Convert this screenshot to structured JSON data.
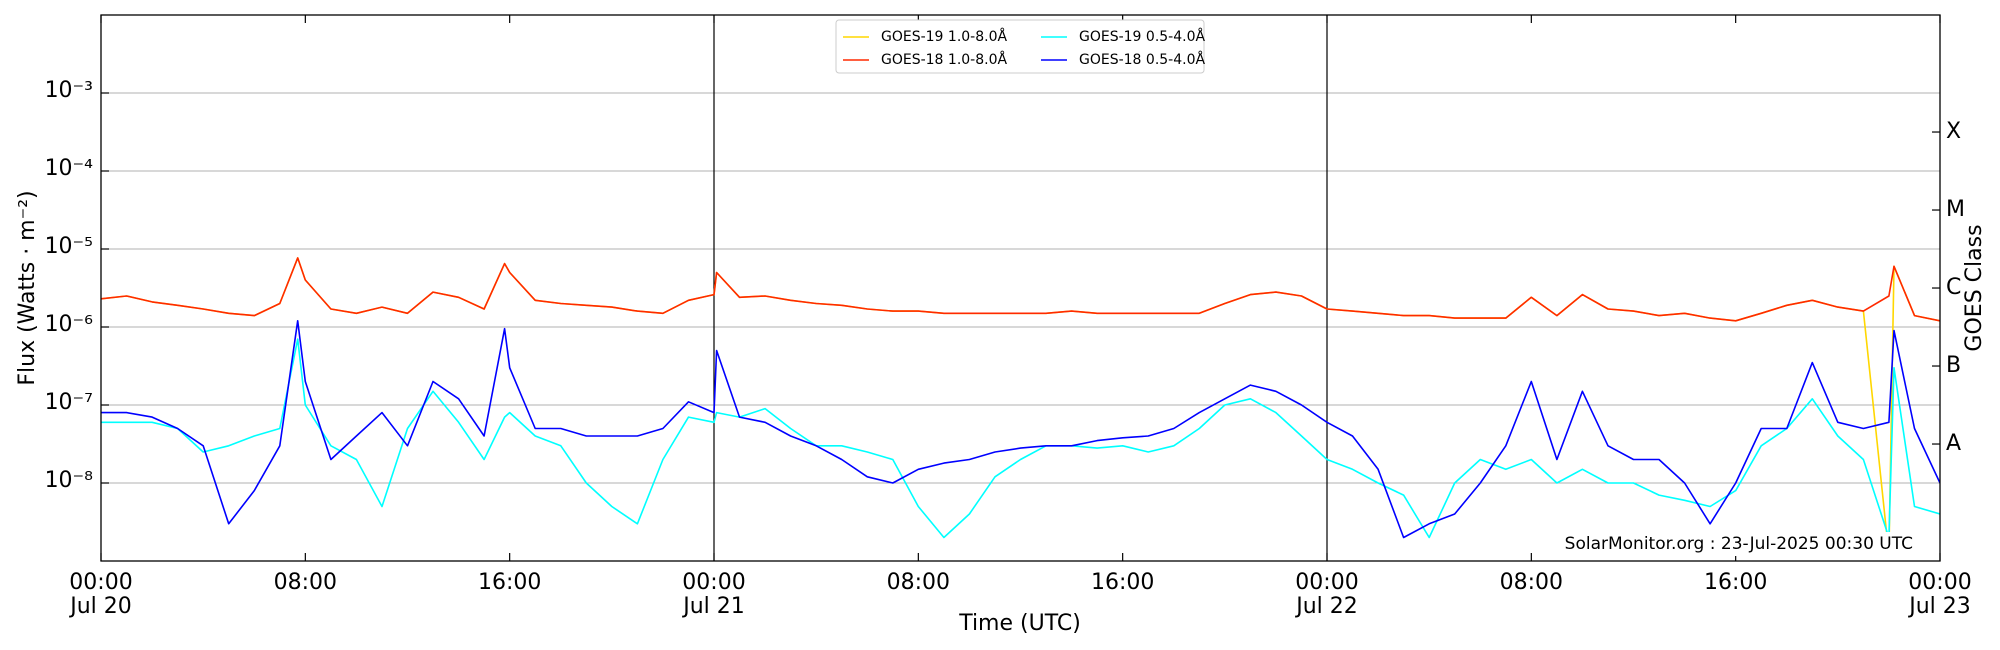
{
  "chart_data": {
    "type": "line",
    "ylabel": "Flux (Watts · m⁻²)",
    "xlabel": "Time (UTC)",
    "y2label": "GOES Class",
    "annotation": "SolarMonitor.org : 23-Jul-2025 00:30 UTC",
    "log_y": true,
    "grid": true,
    "legend": "upper center",
    "xlim": [
      0,
      72
    ],
    "ylim": [
      1e-09,
      0.01
    ],
    "y2lim": [
      1e-09,
      0.01
    ],
    "vlines": [
      24,
      48
    ],
    "xticks": [
      {
        "value": 0,
        "label": "00:00\nJul 20"
      },
      {
        "value": 8,
        "label": "08:00"
      },
      {
        "value": 16,
        "label": "16:00"
      },
      {
        "value": 24,
        "label": "00:00\nJul 21"
      },
      {
        "value": 32,
        "label": "08:00"
      },
      {
        "value": 40,
        "label": "16:00"
      },
      {
        "value": 48,
        "label": "00:00\nJul 22"
      },
      {
        "value": 56,
        "label": "08:00"
      },
      {
        "value": 64,
        "label": "16:00"
      },
      {
        "value": 72,
        "label": "00:00\nJul 23"
      }
    ],
    "yticks": [
      {
        "value": 1e-08,
        "label": "10⁻⁸"
      },
      {
        "value": 1e-07,
        "label": "10⁻⁷"
      },
      {
        "value": 1e-06,
        "label": "10⁻⁶"
      },
      {
        "value": 1e-05,
        "label": "10⁻⁵"
      },
      {
        "value": 0.0001,
        "label": "10⁻⁴"
      },
      {
        "value": 0.001,
        "label": "10⁻³"
      }
    ],
    "y2ticks": [
      {
        "value": 3.16e-08,
        "label": "A"
      },
      {
        "value": 3.16e-07,
        "label": "B"
      },
      {
        "value": 3.16e-06,
        "label": "C"
      },
      {
        "value": 3.16e-05,
        "label": "M"
      },
      {
        "value": 0.000316,
        "label": "X"
      }
    ],
    "x": [
      0,
      1,
      2,
      3,
      4,
      5,
      6,
      7,
      7.7,
      8,
      9,
      10,
      11,
      12,
      13,
      14,
      15,
      15.8,
      16,
      17,
      18,
      19,
      20,
      21,
      22,
      23,
      24,
      24.1,
      25,
      26,
      27,
      28,
      29,
      30,
      31,
      32,
      33,
      34,
      35,
      36,
      37,
      38,
      39,
      40,
      41,
      42,
      43,
      44,
      45,
      46,
      47,
      48,
      49,
      50,
      51,
      52,
      53,
      54,
      55,
      56,
      57,
      58,
      59,
      60,
      61,
      62,
      63,
      64,
      65,
      66,
      67,
      68,
      69,
      70,
      70.2,
      71,
      72
    ],
    "series": [
      {
        "name": "GOES-19 1.0-8.0Å",
        "color": "#ffd700",
        "values": [
          2.3e-06,
          2.5e-06,
          2.1e-06,
          1.9e-06,
          1.7e-06,
          1.5e-06,
          1.4e-06,
          2e-06,
          7.7e-06,
          4e-06,
          1.7e-06,
          1.5e-06,
          1.8e-06,
          1.5e-06,
          2.8e-06,
          2.4e-06,
          1.7e-06,
          6.5e-06,
          5e-06,
          2.2e-06,
          2e-06,
          1.9e-06,
          1.8e-06,
          1.6e-06,
          1.5e-06,
          2.2e-06,
          2.6e-06,
          5e-06,
          2.4e-06,
          2.5e-06,
          2.2e-06,
          2e-06,
          1.9e-06,
          1.7e-06,
          1.6e-06,
          1.6e-06,
          1.5e-06,
          1.5e-06,
          1.5e-06,
          1.5e-06,
          1.5e-06,
          1.6e-06,
          1.5e-06,
          1.5e-06,
          1.5e-06,
          1.5e-06,
          1.5e-06,
          2e-06,
          2.6e-06,
          2.8e-06,
          2.5e-06,
          1.7e-06,
          1.6e-06,
          1.5e-06,
          1.4e-06,
          1.4e-06,
          1.3e-06,
          1.3e-06,
          1.3e-06,
          2.4e-06,
          1.4e-06,
          2.6e-06,
          1.7e-06,
          1.6e-06,
          1.4e-06,
          1.5e-06,
          1.3e-06,
          1.2e-06,
          1.5e-06,
          1.9e-06,
          2.2e-06,
          1.8e-06,
          1.6e-06,
          1.2e-09,
          6e-06,
          1.4e-06,
          1.2e-06
        ]
      },
      {
        "name": "GOES-18 1.0-8.0Å",
        "color": "#ff2a00",
        "values": [
          2.3e-06,
          2.5e-06,
          2.1e-06,
          1.9e-06,
          1.7e-06,
          1.5e-06,
          1.4e-06,
          2e-06,
          7.7e-06,
          4e-06,
          1.7e-06,
          1.5e-06,
          1.8e-06,
          1.5e-06,
          2.8e-06,
          2.4e-06,
          1.7e-06,
          6.5e-06,
          5e-06,
          2.2e-06,
          2e-06,
          1.9e-06,
          1.8e-06,
          1.6e-06,
          1.5e-06,
          2.2e-06,
          2.6e-06,
          5e-06,
          2.4e-06,
          2.5e-06,
          2.2e-06,
          2e-06,
          1.9e-06,
          1.7e-06,
          1.6e-06,
          1.6e-06,
          1.5e-06,
          1.5e-06,
          1.5e-06,
          1.5e-06,
          1.5e-06,
          1.6e-06,
          1.5e-06,
          1.5e-06,
          1.5e-06,
          1.5e-06,
          1.5e-06,
          2e-06,
          2.6e-06,
          2.8e-06,
          2.5e-06,
          1.7e-06,
          1.6e-06,
          1.5e-06,
          1.4e-06,
          1.4e-06,
          1.3e-06,
          1.3e-06,
          1.3e-06,
          2.4e-06,
          1.4e-06,
          2.6e-06,
          1.7e-06,
          1.6e-06,
          1.4e-06,
          1.5e-06,
          1.3e-06,
          1.2e-06,
          1.5e-06,
          1.9e-06,
          2.2e-06,
          1.8e-06,
          1.6e-06,
          2.5e-06,
          6e-06,
          1.4e-06,
          1.2e-06
        ]
      },
      {
        "name": "GOES-19 0.5-4.0Å",
        "color": "#00ffff",
        "values": [
          6e-08,
          6e-08,
          6e-08,
          5e-08,
          2.5e-08,
          3e-08,
          4e-08,
          5e-08,
          7e-07,
          1e-07,
          3e-08,
          2e-08,
          5e-09,
          5e-08,
          1.5e-07,
          6e-08,
          2e-08,
          7e-08,
          8e-08,
          4e-08,
          3e-08,
          1e-08,
          5e-09,
          3e-09,
          2e-08,
          7e-08,
          6e-08,
          8e-08,
          7e-08,
          9e-08,
          5e-08,
          3e-08,
          3e-08,
          2.5e-08,
          2e-08,
          5e-09,
          2e-09,
          4e-09,
          1.2e-08,
          2e-08,
          3e-08,
          3e-08,
          2.8e-08,
          3e-08,
          2.5e-08,
          3e-08,
          5e-08,
          1e-07,
          1.2e-07,
          8e-08,
          4e-08,
          2e-08,
          1.5e-08,
          1e-08,
          7e-09,
          2e-09,
          1e-08,
          2e-08,
          1.5e-08,
          2e-08,
          1e-08,
          1.5e-08,
          1e-08,
          1e-08,
          7e-09,
          6e-09,
          5e-09,
          8e-09,
          3e-08,
          5e-08,
          1.2e-07,
          4e-08,
          2e-08,
          2e-09,
          3e-07,
          5e-09,
          4e-09
        ]
      },
      {
        "name": "GOES-18 0.5-4.0Å",
        "color": "#0000ff",
        "values": [
          8e-08,
          8e-08,
          7e-08,
          5e-08,
          3e-08,
          3e-09,
          8e-09,
          3e-08,
          1.2e-06,
          2e-07,
          2e-08,
          4e-08,
          8e-08,
          3e-08,
          2e-07,
          1.2e-07,
          4e-08,
          9.5e-07,
          3e-07,
          5e-08,
          5e-08,
          4e-08,
          4e-08,
          4e-08,
          5e-08,
          1.1e-07,
          8e-08,
          5e-07,
          7e-08,
          6e-08,
          4e-08,
          3e-08,
          2e-08,
          1.2e-08,
          1e-08,
          1.5e-08,
          1.8e-08,
          2e-08,
          2.5e-08,
          2.8e-08,
          3e-08,
          3e-08,
          3.5e-08,
          3.8e-08,
          4e-08,
          5e-08,
          8e-08,
          1.2e-07,
          1.8e-07,
          1.5e-07,
          1e-07,
          6e-08,
          4e-08,
          1.5e-08,
          2e-09,
          3e-09,
          4e-09,
          1e-08,
          3e-08,
          2e-07,
          2e-08,
          1.5e-07,
          3e-08,
          2e-08,
          2e-08,
          1e-08,
          3e-09,
          1e-08,
          5e-08,
          5e-08,
          3.5e-07,
          6e-08,
          5e-08,
          6e-08,
          9e-07,
          5e-08,
          1e-08
        ]
      }
    ]
  }
}
